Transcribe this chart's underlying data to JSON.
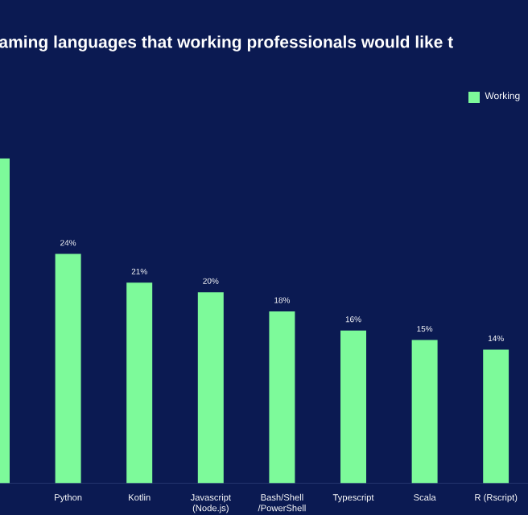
{
  "chart_data": {
    "type": "bar",
    "title": "aming languages that working professionals would like t",
    "categories": [
      null,
      "Python",
      "Kotlin",
      "Javascript\n(Node.js)",
      "Bash/Shell\n/PowerShell",
      "Typescript",
      "Scala",
      "R (Rscript)"
    ],
    "series": [
      {
        "name": "Working",
        "color": "#7dfa9a",
        "values": [
          34,
          24,
          21,
          20,
          18,
          16,
          15,
          14
        ],
        "value_labels": [
          null,
          "24%",
          "21%",
          "20%",
          "18%",
          "16%",
          "15%",
          "14%"
        ]
      }
    ],
    "legend": "top right",
    "grid": false
  }
}
